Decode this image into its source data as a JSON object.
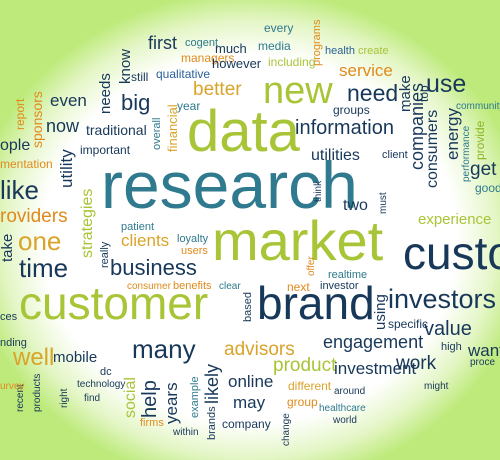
{
  "palette": {
    "navy": "#18385a",
    "teal": "#2f7a8e",
    "blue": "#2a5f99",
    "green": "#8fb424",
    "lime": "#a8c437",
    "orange": "#e08a1c",
    "gold": "#d9a42a",
    "border_glow": "#bdea7a"
  },
  "words": [
    "first",
    "cogent",
    "much",
    "every",
    "media",
    "programs",
    "health",
    "create",
    "know",
    "managers",
    "however",
    "including",
    "service",
    "community",
    "still",
    "qualitative",
    "sponsors",
    "needs",
    "better",
    "new",
    "need",
    "use",
    "make",
    "top",
    "report",
    "even",
    "big",
    "year",
    "groups",
    "companies",
    "provide",
    "now",
    "traditional",
    "overall",
    "data",
    "information",
    "energy",
    "ople",
    "important",
    "financial",
    "consumers",
    "performance",
    "get",
    "mentation",
    "utility",
    "utilities",
    "client",
    "good",
    "like",
    "research",
    "think",
    "must",
    "roviders",
    "strategies",
    "two",
    "experience",
    "take",
    "one",
    "patient",
    "clients",
    "loyalty",
    "users",
    "time",
    "business",
    "market",
    "custo",
    "really",
    "offer",
    "realtime",
    "consumer",
    "benefits",
    "clear",
    "next",
    "investor",
    "investors",
    "customer",
    "brand",
    "based",
    "specific",
    "value",
    "many",
    "using",
    "engagement",
    "high",
    "want",
    "nding",
    "mobile",
    "dc",
    "advisors",
    "product",
    "work",
    "proce",
    "well",
    "products",
    "technology",
    "social",
    "help",
    "years",
    "example",
    "likely",
    "online",
    "investment",
    "recent",
    "right",
    "find",
    "firms",
    "may",
    "different",
    "around",
    "might",
    "urvey",
    "within",
    "brands",
    "company",
    "group",
    "healthcare",
    "world",
    "change",
    "ces"
  ]
}
